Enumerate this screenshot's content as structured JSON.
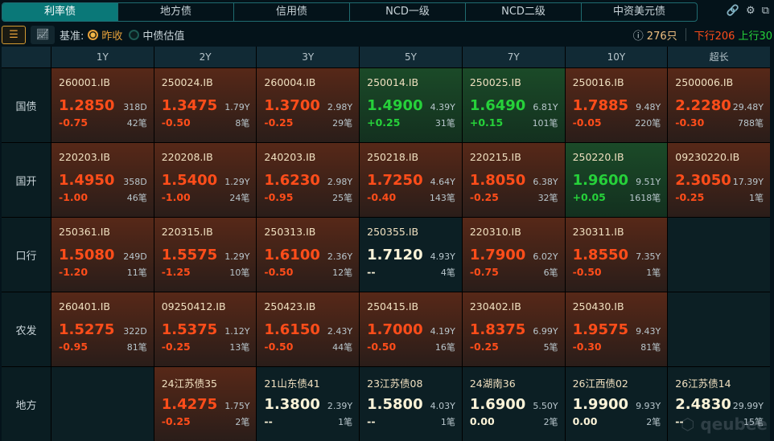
{
  "tabs": [
    "利率债",
    "地方债",
    "信用债",
    "NCD一级",
    "NCD二级",
    "中资美元债"
  ],
  "active_tab": 0,
  "toolbar": {
    "basis_label": "基准:",
    "opt1": "昨收",
    "opt2": "中债估值",
    "selected": "昨收",
    "count": "276只",
    "down": "下行206",
    "up": "上行30"
  },
  "colors": {
    "up": "#ff4d1a",
    "down": "#26d13a",
    "accent": "#0a7878"
  },
  "columns": [
    "1Y",
    "2Y",
    "3Y",
    "5Y",
    "7Y",
    "10Y",
    "超长"
  ],
  "rows": [
    {
      "label": "国债",
      "cells": [
        {
          "code": "260001.IB",
          "yield": "1.2850",
          "term": "318D",
          "chg": "-0.75",
          "trades": "42笔",
          "dir": "up"
        },
        {
          "code": "250024.IB",
          "yield": "1.3475",
          "term": "1.79Y",
          "chg": "-0.50",
          "trades": "8笔",
          "dir": "up"
        },
        {
          "code": "260004.IB",
          "yield": "1.3700",
          "term": "2.98Y",
          "chg": "-0.25",
          "trades": "29笔",
          "dir": "up"
        },
        {
          "code": "250014.IB",
          "yield": "1.4900",
          "term": "4.39Y",
          "chg": "+0.25",
          "trades": "31笔",
          "dir": "dn"
        },
        {
          "code": "250025.IB",
          "yield": "1.6490",
          "term": "6.81Y",
          "chg": "+0.15",
          "trades": "101笔",
          "dir": "dn"
        },
        {
          "code": "250016.IB",
          "yield": "1.7885",
          "term": "9.48Y",
          "chg": "-0.05",
          "trades": "220笔",
          "dir": "up"
        },
        {
          "code": "2500006.IB",
          "yield": "2.2280",
          "term": "29.48Y",
          "chg": "-0.30",
          "trades": "788笔",
          "dir": "up"
        }
      ]
    },
    {
      "label": "国开",
      "cells": [
        {
          "code": "220203.IB",
          "yield": "1.4950",
          "term": "358D",
          "chg": "-1.00",
          "trades": "46笔",
          "dir": "up"
        },
        {
          "code": "220208.IB",
          "yield": "1.5400",
          "term": "1.29Y",
          "chg": "-1.00",
          "trades": "24笔",
          "dir": "up"
        },
        {
          "code": "240203.IB",
          "yield": "1.6230",
          "term": "2.98Y",
          "chg": "-0.95",
          "trades": "25笔",
          "dir": "up"
        },
        {
          "code": "250218.IB",
          "yield": "1.7250",
          "term": "4.64Y",
          "chg": "-0.40",
          "trades": "143笔",
          "dir": "up"
        },
        {
          "code": "220215.IB",
          "yield": "1.8050",
          "term": "6.38Y",
          "chg": "-0.25",
          "trades": "32笔",
          "dir": "up"
        },
        {
          "code": "250220.IB",
          "yield": "1.9600",
          "term": "9.51Y",
          "chg": "+0.05",
          "trades": "1618笔",
          "dir": "dn"
        },
        {
          "code": "09230220.IB",
          "yield": "2.3050",
          "term": "17.39Y",
          "chg": "-0.25",
          "trades": "1笔",
          "dir": "up"
        }
      ]
    },
    {
      "label": "口行",
      "cells": [
        {
          "code": "250361.IB",
          "yield": "1.5080",
          "term": "249D",
          "chg": "-1.20",
          "trades": "11笔",
          "dir": "up"
        },
        {
          "code": "220315.IB",
          "yield": "1.5575",
          "term": "1.29Y",
          "chg": "-1.25",
          "trades": "10笔",
          "dir": "up"
        },
        {
          "code": "250313.IB",
          "yield": "1.6100",
          "term": "2.36Y",
          "chg": "-0.50",
          "trades": "12笔",
          "dir": "up"
        },
        {
          "code": "250355.IB",
          "yield": "1.7120",
          "term": "4.93Y",
          "chg": "--",
          "trades": "4笔",
          "dir": "flat"
        },
        {
          "code": "220310.IB",
          "yield": "1.7900",
          "term": "6.02Y",
          "chg": "-0.75",
          "trades": "6笔",
          "dir": "up"
        },
        {
          "code": "230311.IB",
          "yield": "1.8550",
          "term": "7.35Y",
          "chg": "-0.50",
          "trades": "1笔",
          "dir": "up"
        },
        null
      ]
    },
    {
      "label": "农发",
      "cells": [
        {
          "code": "260401.IB",
          "yield": "1.5275",
          "term": "322D",
          "chg": "-0.95",
          "trades": "81笔",
          "dir": "up"
        },
        {
          "code": "09250412.IB",
          "yield": "1.5375",
          "term": "1.12Y",
          "chg": "-0.25",
          "trades": "13笔",
          "dir": "up"
        },
        {
          "code": "250423.IB",
          "yield": "1.6150",
          "term": "2.43Y",
          "chg": "-0.50",
          "trades": "44笔",
          "dir": "up"
        },
        {
          "code": "250415.IB",
          "yield": "1.7000",
          "term": "4.19Y",
          "chg": "-0.50",
          "trades": "16笔",
          "dir": "up"
        },
        {
          "code": "230402.IB",
          "yield": "1.8375",
          "term": "6.99Y",
          "chg": "-0.25",
          "trades": "5笔",
          "dir": "up"
        },
        {
          "code": "250430.IB",
          "yield": "1.9575",
          "term": "9.43Y",
          "chg": "-0.30",
          "trades": "81笔",
          "dir": "up"
        },
        null
      ]
    },
    {
      "label": "地方",
      "cells": [
        null,
        {
          "code": "24江苏债35",
          "yield": "1.4275",
          "term": "1.75Y",
          "chg": "-0.25",
          "trades": "2笔",
          "dir": "up"
        },
        {
          "code": "21山东债41",
          "yield": "1.3800",
          "term": "2.39Y",
          "chg": "--",
          "trades": "1笔",
          "dir": "flat"
        },
        {
          "code": "23江苏债08",
          "yield": "1.5800",
          "term": "4.03Y",
          "chg": "--",
          "trades": "1笔",
          "dir": "flat"
        },
        {
          "code": "24湖南36",
          "yield": "1.6900",
          "term": "5.50Y",
          "chg": "0.00",
          "trades": "2笔",
          "dir": "flat"
        },
        {
          "code": "26江西债02",
          "yield": "1.9900",
          "term": "9.93Y",
          "chg": "0.00",
          "trades": "2笔",
          "dir": "flat"
        },
        {
          "code": "26江苏债14",
          "yield": "2.4830",
          "term": "29.99Y",
          "chg": "--",
          "trades": "15笔",
          "dir": "flat"
        }
      ]
    }
  ],
  "watermark": "qeubee"
}
